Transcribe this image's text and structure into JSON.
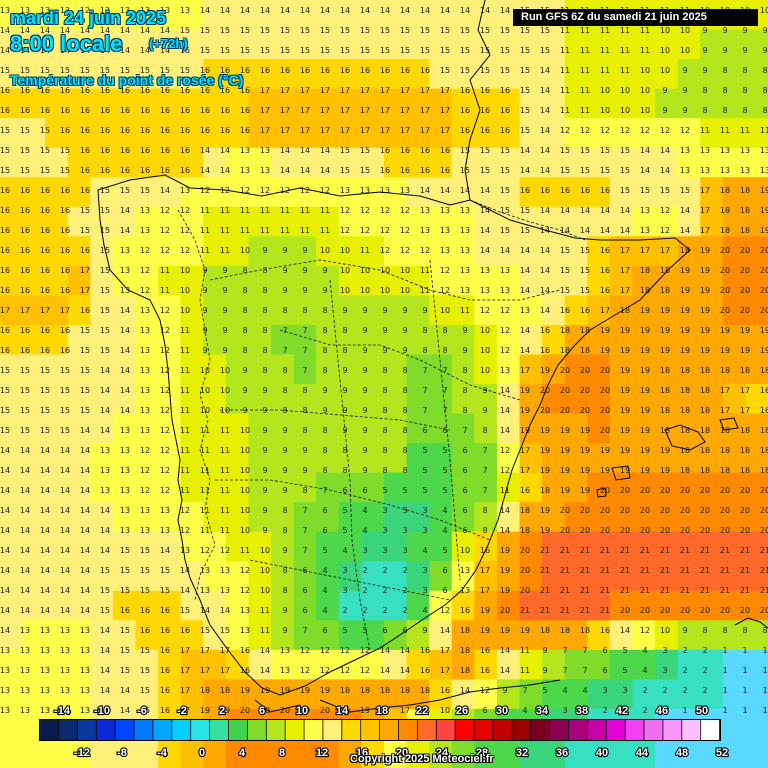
{
  "header": {
    "date": "mardi 24 juin 2025",
    "time": "8:00 locale",
    "lead": "(+72h)",
    "variable": "Température du point de rosée (°C)"
  },
  "run_label": "Run GFS 6Z du samedi 21 juin 2025",
  "copyright": "Copyright 2025 Meteociel.fr",
  "legend": {
    "top_labels": [
      "-14",
      "-10",
      "-6",
      "-2",
      "2",
      "6",
      "10",
      "14",
      "18",
      "22",
      "26",
      "30",
      "34",
      "38",
      "42",
      "46",
      "50"
    ],
    "bottom_labels": [
      "-12",
      "-8",
      "-4",
      "0",
      "4",
      "8",
      "12",
      "16",
      "20",
      "24",
      "28",
      "32",
      "36",
      "40",
      "44",
      "48",
      "52"
    ],
    "colors": [
      "#0a1a4a",
      "#0b2a6e",
      "#08389e",
      "#0a28d8",
      "#0046ff",
      "#0078ff",
      "#00a8ff",
      "#00cfff",
      "#28e6e6",
      "#36e0a0",
      "#3fd24a",
      "#7fdc2a",
      "#b4e61e",
      "#e6f000",
      "#ffff4a",
      "#fff07a",
      "#ffd800",
      "#ffc400",
      "#ffa800",
      "#ff8a00",
      "#ff6a2a",
      "#ff4242",
      "#ff0000",
      "#e60000",
      "#c20000",
      "#9a0000",
      "#7a0020",
      "#8a0050",
      "#a8007a",
      "#c800a8",
      "#e400d2",
      "#f040f0",
      "#f06ef0",
      "#f896f8",
      "#fcbefc",
      "#ffffff"
    ]
  },
  "field": {
    "grid": [
      [
        13,
        13,
        13,
        12,
        12,
        13,
        13,
        13,
        13,
        14,
        14,
        14,
        14,
        14,
        14,
        14,
        14,
        14,
        14,
        14,
        14,
        14,
        14,
        15,
        15,
        11,
        11,
        11,
        11,
        11,
        11,
        10,
        10,
        10
      ],
      [
        14,
        14,
        14,
        14,
        14,
        14,
        14,
        14,
        15,
        15,
        15,
        15,
        15,
        15,
        15,
        15,
        15,
        15,
        15,
        15,
        15,
        15,
        15,
        15,
        15,
        11,
        11,
        11,
        11,
        10,
        10,
        9,
        9,
        9
      ],
      [
        15,
        15,
        15,
        15,
        15,
        15,
        15,
        15,
        15,
        16,
        16,
        16,
        16,
        16,
        16,
        16,
        16,
        16,
        16,
        15,
        15,
        15,
        15,
        15,
        14,
        11,
        11,
        11,
        10,
        10,
        9,
        9,
        8,
        8
      ],
      [
        16,
        16,
        16,
        16,
        16,
        16,
        16,
        16,
        16,
        16,
        16,
        17,
        17,
        17,
        17,
        17,
        17,
        17,
        17,
        17,
        16,
        16,
        16,
        15,
        14,
        11,
        10,
        10,
        10,
        9,
        9,
        8,
        8,
        8
      ],
      [
        15,
        15,
        16,
        16,
        16,
        16,
        16,
        16,
        16,
        16,
        16,
        17,
        17,
        17,
        17,
        17,
        17,
        17,
        17,
        17,
        16,
        16,
        16,
        15,
        14,
        12,
        12,
        12,
        12,
        12,
        12,
        11,
        11,
        11
      ],
      [
        15,
        15,
        15,
        16,
        16,
        16,
        16,
        16,
        16,
        14,
        13,
        13,
        14,
        14,
        14,
        15,
        15,
        16,
        16,
        16,
        15,
        15,
        15,
        14,
        14,
        15,
        15,
        15,
        14,
        14,
        13,
        13,
        13,
        13
      ],
      [
        16,
        16,
        16,
        16,
        15,
        15,
        15,
        14,
        13,
        12,
        12,
        12,
        12,
        12,
        12,
        13,
        13,
        13,
        14,
        14,
        14,
        14,
        15,
        16,
        16,
        16,
        16,
        15,
        15,
        15,
        15,
        17,
        18,
        19
      ],
      [
        16,
        16,
        16,
        15,
        15,
        14,
        13,
        12,
        12,
        11,
        11,
        11,
        11,
        11,
        11,
        12,
        12,
        12,
        13,
        13,
        13,
        14,
        15,
        15,
        14,
        14,
        14,
        14,
        13,
        12,
        14,
        17,
        18,
        19
      ],
      [
        16,
        16,
        16,
        16,
        15,
        13,
        12,
        12,
        12,
        11,
        10,
        9,
        9,
        9,
        10,
        10,
        11,
        12,
        12,
        13,
        13,
        14,
        14,
        14,
        14,
        15,
        16,
        17,
        17,
        17,
        18,
        19,
        20,
        20
      ],
      [
        16,
        16,
        16,
        17,
        15,
        13,
        12,
        11,
        10,
        9,
        8,
        8,
        9,
        9,
        9,
        10,
        10,
        10,
        11,
        12,
        13,
        13,
        13,
        14,
        14,
        15,
        16,
        17,
        18,
        18,
        19,
        19,
        20,
        20
      ],
      [
        17,
        17,
        17,
        16,
        15,
        14,
        13,
        12,
        10,
        9,
        8,
        8,
        8,
        8,
        8,
        9,
        9,
        9,
        9,
        10,
        11,
        12,
        12,
        13,
        14,
        16,
        17,
        18,
        19,
        19,
        19,
        19,
        20,
        20
      ],
      [
        16,
        16,
        16,
        15,
        15,
        14,
        13,
        12,
        11,
        9,
        8,
        8,
        7,
        7,
        8,
        8,
        9,
        9,
        8,
        8,
        9,
        10,
        12,
        14,
        16,
        18,
        19,
        19,
        19,
        19,
        19,
        19,
        19,
        19
      ],
      [
        15,
        15,
        15,
        15,
        14,
        14,
        13,
        12,
        11,
        10,
        9,
        8,
        8,
        7,
        8,
        9,
        9,
        8,
        7,
        7,
        8,
        10,
        13,
        17,
        19,
        20,
        20,
        19,
        19,
        18,
        18,
        18,
        18,
        18
      ],
      [
        15,
        15,
        15,
        15,
        14,
        14,
        13,
        12,
        11,
        10,
        9,
        9,
        8,
        8,
        9,
        9,
        9,
        8,
        7,
        7,
        8,
        9,
        14,
        19,
        20,
        20,
        20,
        19,
        19,
        18,
        18,
        18,
        17,
        16
      ],
      [
        15,
        15,
        15,
        14,
        14,
        13,
        13,
        12,
        11,
        11,
        10,
        9,
        9,
        8,
        8,
        9,
        9,
        8,
        6,
        6,
        7,
        8,
        14,
        19,
        19,
        19,
        20,
        19,
        19,
        18,
        18,
        18,
        18,
        18
      ],
      [
        14,
        14,
        14,
        14,
        13,
        13,
        12,
        12,
        11,
        11,
        10,
        9,
        9,
        9,
        8,
        8,
        9,
        8,
        5,
        5,
        6,
        7,
        12,
        17,
        19,
        19,
        19,
        19,
        19,
        19,
        18,
        18,
        18,
        18
      ],
      [
        14,
        14,
        14,
        14,
        13,
        13,
        12,
        12,
        11,
        11,
        10,
        9,
        9,
        8,
        7,
        6,
        6,
        5,
        5,
        5,
        6,
        7,
        11,
        16,
        18,
        19,
        20,
        20,
        20,
        20,
        20,
        20,
        20,
        20
      ],
      [
        14,
        14,
        14,
        14,
        14,
        13,
        13,
        13,
        12,
        11,
        10,
        9,
        8,
        7,
        6,
        5,
        4,
        3,
        3,
        4,
        6,
        8,
        14,
        18,
        19,
        20,
        20,
        20,
        20,
        20,
        20,
        20,
        20,
        20
      ],
      [
        14,
        14,
        14,
        14,
        14,
        15,
        15,
        14,
        13,
        12,
        11,
        10,
        9,
        7,
        5,
        4,
        3,
        3,
        4,
        5,
        10,
        16,
        19,
        20,
        21,
        21,
        21,
        21,
        21,
        21,
        21,
        21,
        21,
        21
      ],
      [
        14,
        14,
        14,
        14,
        15,
        15,
        15,
        15,
        14,
        13,
        12,
        10,
        8,
        6,
        4,
        3,
        2,
        2,
        3,
        6,
        13,
        17,
        19,
        20,
        21,
        21,
        21,
        21,
        21,
        21,
        21,
        21,
        21,
        21
      ],
      [
        14,
        14,
        14,
        14,
        15,
        16,
        16,
        16,
        15,
        14,
        13,
        11,
        9,
        6,
        4,
        2,
        2,
        2,
        4,
        12,
        16,
        19,
        20,
        21,
        21,
        21,
        21,
        20,
        20,
        20,
        20,
        20,
        20,
        20
      ],
      [
        14,
        13,
        13,
        13,
        14,
        15,
        16,
        16,
        16,
        15,
        13,
        11,
        9,
        7,
        6,
        5,
        5,
        6,
        9,
        14,
        18,
        19,
        19,
        19,
        18,
        18,
        16,
        14,
        12,
        10,
        9,
        8,
        8,
        8
      ],
      [
        13,
        13,
        13,
        13,
        14,
        15,
        15,
        16,
        17,
        17,
        16,
        14,
        13,
        12,
        12,
        12,
        12,
        14,
        16,
        17,
        18,
        16,
        14,
        11,
        9,
        7,
        6,
        5,
        4,
        3,
        2,
        2,
        1,
        1
      ],
      [
        13,
        13,
        13,
        13,
        14,
        14,
        15,
        16,
        17,
        18,
        19,
        19,
        19,
        19,
        19,
        18,
        18,
        18,
        18,
        16,
        14,
        12,
        9,
        7,
        5,
        4,
        3,
        3,
        2,
        2,
        2,
        2,
        1,
        1
      ],
      [
        13,
        13,
        13,
        13,
        14,
        14,
        15,
        16,
        17,
        19,
        20,
        20,
        20,
        20,
        20,
        20,
        19,
        17,
        13,
        10,
        8,
        6,
        5,
        4,
        3,
        3,
        2,
        2,
        2,
        1,
        1,
        1,
        1,
        1
      ],
      [
        13,
        13,
        13,
        13,
        14,
        14,
        14,
        16,
        17,
        19,
        20,
        20,
        20,
        20,
        20,
        19,
        16,
        13,
        10,
        8,
        6,
        5,
        4,
        3,
        3,
        2,
        2,
        2,
        2,
        1,
        1,
        1,
        1,
        1
      ]
    ]
  },
  "icons": [
    "coastline-lines",
    "border-lines",
    "region-lines",
    "colorbar"
  ]
}
